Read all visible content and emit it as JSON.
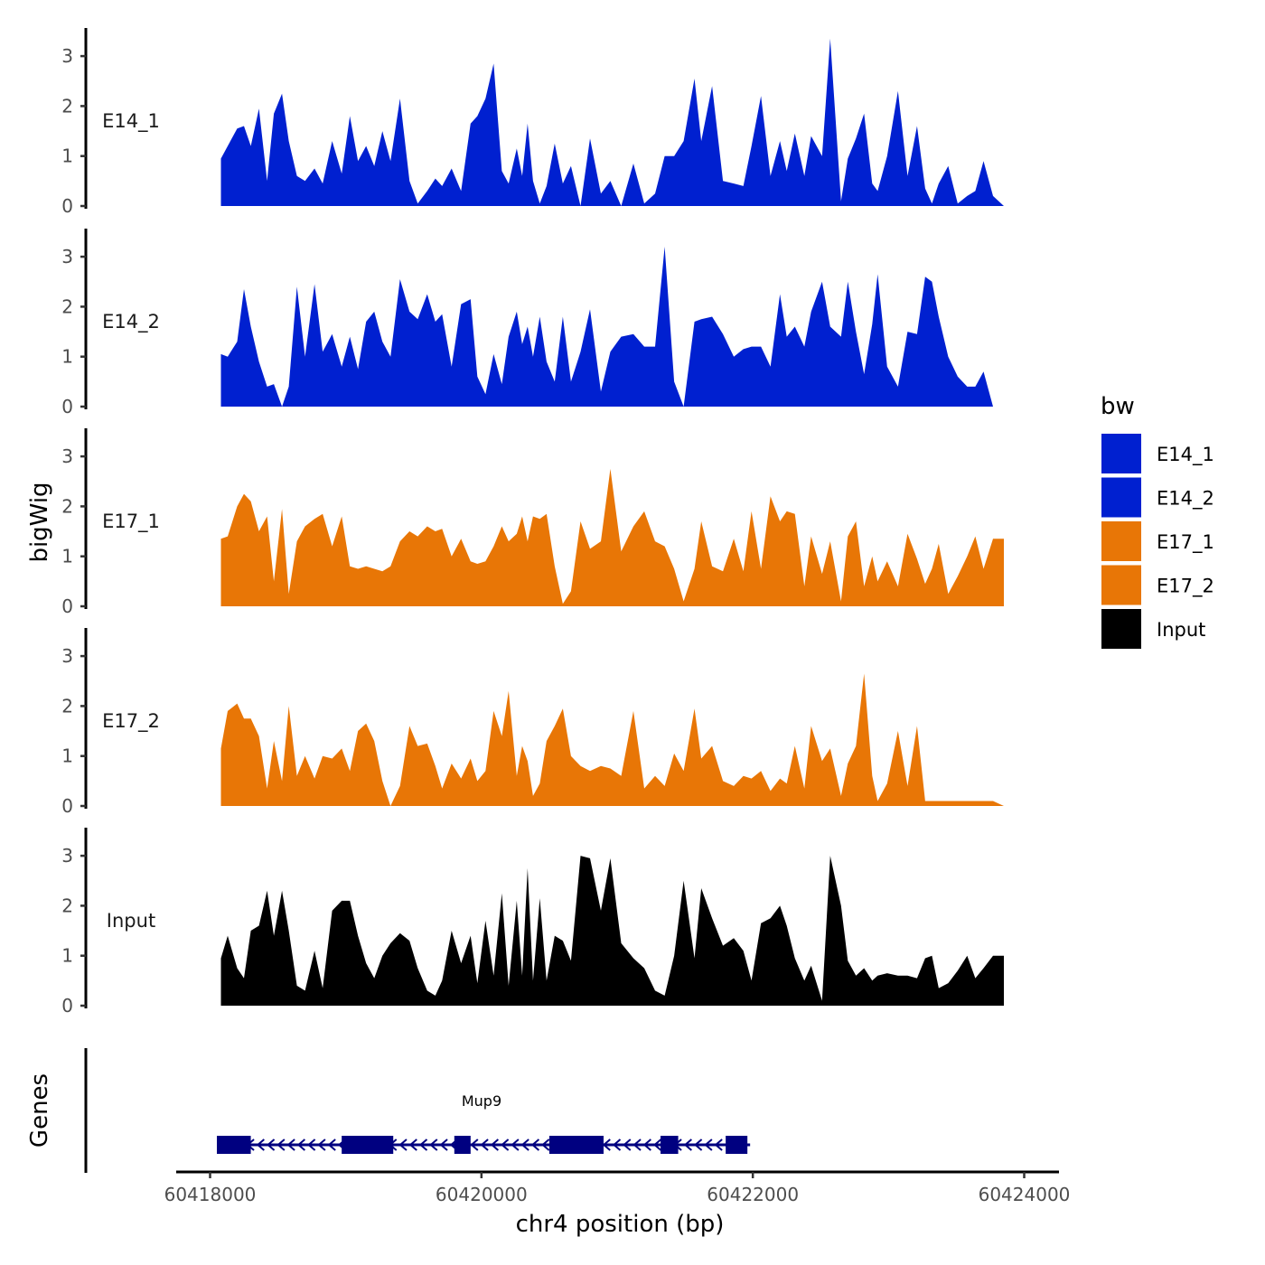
{
  "chart_data": {
    "type": "area",
    "ylabel": "bigWig",
    "xlabel": "chr4 position (bp)",
    "xlim": [
      60417880,
      60424120
    ],
    "x_ticks": [
      60418000,
      60420000,
      60422000,
      60424000
    ],
    "x_tick_labels": [
      "60418000",
      "60420000",
      "60422000",
      "60424000"
    ],
    "ylim": [
      0,
      3.5
    ],
    "y_ticks": [
      0,
      1,
      2,
      3
    ],
    "y_tick_labels": [
      "0",
      "1",
      "2",
      "3"
    ],
    "legend": {
      "title": "bw",
      "position": "right",
      "entries": [
        {
          "label": "E14_1",
          "color": "#0020D0"
        },
        {
          "label": "E14_2",
          "color": "#0020D0"
        },
        {
          "label": "E17_1",
          "color": "#E87606"
        },
        {
          "label": "E17_2",
          "color": "#E87606"
        },
        {
          "label": "Input",
          "color": "#000000"
        }
      ]
    },
    "series": [
      {
        "name": "E14_1",
        "color": "#0020D0",
        "x": [
          60418080,
          60418130,
          60418200,
          60418250,
          60418300,
          60418360,
          60418420,
          60418470,
          60418530,
          60418580,
          60418640,
          60418700,
          60418770,
          60418830,
          60418900,
          60418970,
          60419030,
          60419090,
          60419150,
          60419210,
          60419270,
          60419330,
          60419400,
          60419470,
          60419530,
          60419600,
          60419660,
          60419710,
          60419780,
          60419850,
          60419920,
          60419970,
          60420030,
          60420090,
          60420150,
          60420200,
          60420260,
          60420300,
          60420340,
          60420380,
          60420430,
          60420480,
          60420540,
          60420600,
          60420660,
          60420730,
          60420800,
          60420880,
          60420950,
          60421030,
          60421120,
          60421200,
          60421280,
          60421350,
          60421420,
          60421490,
          60421570,
          60421620,
          60421700,
          60421780,
          60421860,
          60421930,
          60421990,
          60422060,
          60422130,
          60422200,
          60422250,
          60422310,
          60422380,
          60422430,
          60422510,
          60422570,
          60422650,
          60422700,
          60422760,
          60422820,
          60422880,
          60422920,
          60422990,
          60423070,
          60423140,
          60423210,
          60423270,
          60423320,
          60423370,
          60423440,
          60423510,
          60423580,
          60423640,
          60423700,
          60423770,
          60423850
        ],
        "y": [
          0.95,
          1.2,
          1.55,
          1.6,
          1.2,
          1.95,
          0.5,
          1.85,
          2.25,
          1.3,
          0.6,
          0.5,
          0.75,
          0.45,
          1.3,
          0.65,
          1.8,
          0.9,
          1.2,
          0.8,
          1.5,
          0.9,
          2.15,
          0.5,
          0.05,
          0.3,
          0.55,
          0.4,
          0.75,
          0.3,
          1.65,
          1.8,
          2.15,
          2.85,
          0.7,
          0.45,
          1.15,
          0.6,
          1.65,
          0.5,
          0.05,
          0.4,
          1.25,
          0.45,
          0.8,
          0.0,
          1.35,
          0.25,
          0.5,
          0.0,
          0.85,
          0.05,
          0.25,
          1.0,
          1.0,
          1.3,
          2.55,
          1.3,
          2.4,
          0.5,
          0.45,
          0.4,
          1.2,
          2.2,
          0.6,
          1.3,
          0.7,
          1.45,
          0.6,
          1.4,
          1.0,
          3.35,
          0.1,
          0.95,
          1.35,
          1.85,
          0.45,
          0.3,
          1.0,
          2.3,
          0.6,
          1.6,
          0.35,
          0.05,
          0.45,
          0.8,
          0.05,
          0.2,
          0.3,
          0.9,
          0.2,
          0.0
        ]
      },
      {
        "name": "E14_2",
        "color": "#0020D0",
        "x": [
          60418080,
          60418130,
          60418200,
          60418250,
          60418300,
          60418360,
          60418420,
          60418470,
          60418530,
          60418580,
          60418640,
          60418700,
          60418770,
          60418830,
          60418900,
          60418970,
          60419030,
          60419090,
          60419150,
          60419210,
          60419270,
          60419330,
          60419400,
          60419470,
          60419530,
          60419600,
          60419660,
          60419710,
          60419780,
          60419850,
          60419920,
          60419970,
          60420030,
          60420090,
          60420150,
          60420200,
          60420260,
          60420300,
          60420340,
          60420380,
          60420430,
          60420480,
          60420540,
          60420600,
          60420660,
          60420730,
          60420800,
          60420880,
          60420950,
          60421030,
          60421120,
          60421200,
          60421280,
          60421350,
          60421420,
          60421490,
          60421570,
          60421620,
          60421700,
          60421780,
          60421860,
          60421930,
          60421990,
          60422060,
          60422130,
          60422200,
          60422250,
          60422310,
          60422380,
          60422430,
          60422510,
          60422570,
          60422650,
          60422700,
          60422760,
          60422820,
          60422880,
          60422920,
          60422990,
          60423070,
          60423140,
          60423210,
          60423270,
          60423320,
          60423370,
          60423440,
          60423510,
          60423580,
          60423640,
          60423700,
          60423770,
          60423850
        ],
        "y": [
          1.05,
          1.0,
          1.3,
          2.35,
          1.6,
          0.9,
          0.4,
          0.45,
          0.0,
          0.4,
          2.4,
          1.0,
          2.45,
          1.1,
          1.45,
          0.8,
          1.4,
          0.75,
          1.7,
          1.9,
          1.3,
          1.0,
          2.55,
          1.9,
          1.75,
          2.25,
          1.7,
          1.85,
          0.8,
          2.05,
          2.15,
          0.6,
          0.25,
          1.05,
          0.45,
          1.4,
          1.9,
          1.25,
          1.6,
          1.0,
          1.8,
          0.9,
          0.5,
          1.8,
          0.5,
          1.1,
          1.95,
          0.3,
          1.1,
          1.4,
          1.45,
          1.2,
          1.2,
          3.2,
          0.5,
          0.0,
          1.7,
          1.75,
          1.8,
          1.45,
          1.0,
          1.15,
          1.2,
          1.2,
          0.8,
          2.25,
          1.4,
          1.6,
          1.2,
          1.9,
          2.5,
          1.6,
          1.4,
          2.5,
          1.5,
          0.65,
          1.65,
          2.65,
          0.8,
          0.4,
          1.5,
          1.45,
          2.6,
          2.5,
          1.8,
          1.0,
          0.6,
          0.4,
          0.4,
          0.7,
          0.0,
          0.0
        ]
      },
      {
        "name": "E17_1",
        "color": "#E87606",
        "x": [
          60418080,
          60418130,
          60418200,
          60418250,
          60418300,
          60418360,
          60418420,
          60418470,
          60418530,
          60418580,
          60418640,
          60418700,
          60418770,
          60418830,
          60418900,
          60418970,
          60419030,
          60419090,
          60419150,
          60419210,
          60419270,
          60419330,
          60419400,
          60419470,
          60419530,
          60419600,
          60419660,
          60419710,
          60419780,
          60419850,
          60419920,
          60419970,
          60420030,
          60420090,
          60420150,
          60420200,
          60420260,
          60420300,
          60420340,
          60420380,
          60420430,
          60420480,
          60420540,
          60420600,
          60420660,
          60420730,
          60420800,
          60420880,
          60420950,
          60421030,
          60421120,
          60421200,
          60421280,
          60421350,
          60421420,
          60421490,
          60421570,
          60421620,
          60421700,
          60421780,
          60421860,
          60421930,
          60421990,
          60422060,
          60422130,
          60422200,
          60422250,
          60422310,
          60422380,
          60422430,
          60422510,
          60422570,
          60422650,
          60422700,
          60422760,
          60422820,
          60422880,
          60422920,
          60422990,
          60423070,
          60423140,
          60423210,
          60423270,
          60423320,
          60423370,
          60423440,
          60423510,
          60423580,
          60423640,
          60423700,
          60423770,
          60423850
        ],
        "y": [
          1.35,
          1.4,
          2.0,
          2.25,
          2.1,
          1.5,
          1.8,
          0.5,
          1.95,
          0.25,
          1.3,
          1.6,
          1.75,
          1.85,
          1.2,
          1.8,
          0.8,
          0.75,
          0.8,
          0.75,
          0.7,
          0.8,
          1.3,
          1.5,
          1.4,
          1.6,
          1.5,
          1.55,
          1.0,
          1.35,
          0.9,
          0.85,
          0.9,
          1.2,
          1.6,
          1.3,
          1.45,
          1.8,
          1.3,
          1.8,
          1.75,
          1.85,
          0.8,
          0.05,
          0.3,
          1.7,
          1.15,
          1.3,
          2.75,
          1.1,
          1.6,
          1.9,
          1.3,
          1.2,
          0.75,
          0.1,
          0.75,
          1.7,
          0.8,
          0.7,
          1.35,
          0.7,
          1.9,
          0.75,
          2.2,
          1.7,
          1.9,
          1.85,
          0.4,
          1.4,
          0.65,
          1.3,
          0.1,
          1.4,
          1.7,
          0.4,
          1.0,
          0.5,
          0.9,
          0.4,
          1.45,
          0.95,
          0.45,
          0.75,
          1.25,
          0.25,
          0.6,
          1.0,
          1.4,
          0.75,
          1.35,
          1.35
        ]
      },
      {
        "name": "E17_2",
        "color": "#E87606",
        "x": [
          60418080,
          60418130,
          60418200,
          60418250,
          60418300,
          60418360,
          60418420,
          60418470,
          60418530,
          60418580,
          60418640,
          60418700,
          60418770,
          60418830,
          60418900,
          60418970,
          60419030,
          60419090,
          60419150,
          60419210,
          60419270,
          60419330,
          60419400,
          60419470,
          60419530,
          60419600,
          60419660,
          60419710,
          60419780,
          60419850,
          60419920,
          60419970,
          60420030,
          60420090,
          60420150,
          60420200,
          60420260,
          60420300,
          60420340,
          60420380,
          60420430,
          60420480,
          60420540,
          60420600,
          60420660,
          60420730,
          60420800,
          60420880,
          60420950,
          60421030,
          60421120,
          60421200,
          60421280,
          60421350,
          60421420,
          60421490,
          60421570,
          60421620,
          60421700,
          60421780,
          60421860,
          60421930,
          60421990,
          60422060,
          60422130,
          60422200,
          60422250,
          60422310,
          60422380,
          60422430,
          60422510,
          60422570,
          60422650,
          60422700,
          60422760,
          60422820,
          60422880,
          60422920,
          60422990,
          60423070,
          60423140,
          60423210,
          60423270,
          60423320,
          60423370,
          60423440,
          60423510,
          60423580,
          60423640,
          60423700,
          60423770,
          60423850
        ],
        "y": [
          1.15,
          1.9,
          2.05,
          1.75,
          1.75,
          1.4,
          0.35,
          1.3,
          0.5,
          2.0,
          0.6,
          1.0,
          0.55,
          1.0,
          0.95,
          1.15,
          0.7,
          1.5,
          1.65,
          1.3,
          0.5,
          0.0,
          0.4,
          1.6,
          1.2,
          1.25,
          0.8,
          0.35,
          0.85,
          0.55,
          0.95,
          0.5,
          0.7,
          1.9,
          1.4,
          2.3,
          0.6,
          1.2,
          0.9,
          0.2,
          0.45,
          1.3,
          1.6,
          1.95,
          1.0,
          0.8,
          0.7,
          0.8,
          0.75,
          0.6,
          1.9,
          0.35,
          0.6,
          0.4,
          1.05,
          0.7,
          1.95,
          0.95,
          1.2,
          0.5,
          0.4,
          0.6,
          0.55,
          0.7,
          0.3,
          0.55,
          0.45,
          1.2,
          0.35,
          1.6,
          0.9,
          1.15,
          0.2,
          0.85,
          1.2,
          2.65,
          0.6,
          0.1,
          0.45,
          1.5,
          0.4,
          1.6,
          0.1,
          0.1,
          0.1,
          0.1,
          0.1,
          0.1,
          0.1,
          0.1,
          0.1,
          0.0
        ]
      },
      {
        "name": "Input",
        "color": "#000000",
        "x": [
          60418080,
          60418130,
          60418200,
          60418250,
          60418300,
          60418360,
          60418420,
          60418470,
          60418530,
          60418580,
          60418640,
          60418700,
          60418770,
          60418830,
          60418900,
          60418970,
          60419030,
          60419090,
          60419150,
          60419210,
          60419270,
          60419330,
          60419400,
          60419470,
          60419530,
          60419600,
          60419660,
          60419710,
          60419780,
          60419850,
          60419920,
          60419970,
          60420030,
          60420090,
          60420150,
          60420200,
          60420260,
          60420300,
          60420340,
          60420380,
          60420430,
          60420480,
          60420540,
          60420600,
          60420660,
          60420730,
          60420800,
          60420880,
          60420950,
          60421030,
          60421120,
          60421200,
          60421280,
          60421350,
          60421420,
          60421490,
          60421570,
          60421620,
          60421700,
          60421780,
          60421860,
          60421930,
          60421990,
          60422060,
          60422130,
          60422200,
          60422250,
          60422310,
          60422380,
          60422430,
          60422510,
          60422570,
          60422650,
          60422700,
          60422760,
          60422820,
          60422880,
          60422920,
          60422990,
          60423070,
          60423140,
          60423210,
          60423270,
          60423320,
          60423370,
          60423440,
          60423510,
          60423580,
          60423640,
          60423700,
          60423770,
          60423850
        ],
        "y": [
          0.95,
          1.4,
          0.75,
          0.55,
          1.5,
          1.6,
          2.3,
          1.4,
          2.3,
          1.5,
          0.4,
          0.3,
          1.1,
          0.35,
          1.9,
          2.1,
          2.1,
          1.4,
          0.85,
          0.55,
          1.0,
          1.25,
          1.45,
          1.3,
          0.75,
          0.3,
          0.2,
          0.5,
          1.5,
          0.85,
          1.4,
          0.45,
          1.7,
          0.6,
          2.25,
          0.4,
          2.1,
          0.6,
          2.75,
          0.5,
          2.15,
          0.5,
          1.4,
          1.3,
          0.9,
          3.0,
          2.95,
          1.9,
          2.95,
          1.25,
          0.95,
          0.75,
          0.3,
          0.2,
          1.0,
          2.5,
          0.95,
          2.35,
          1.75,
          1.2,
          1.35,
          1.1,
          0.5,
          1.65,
          1.75,
          2.0,
          1.6,
          0.95,
          0.5,
          0.8,
          0.1,
          3.0,
          2.0,
          0.9,
          0.6,
          0.75,
          0.5,
          0.6,
          0.65,
          0.6,
          0.6,
          0.55,
          0.95,
          1.0,
          0.35,
          0.45,
          0.7,
          1.0,
          0.55,
          0.75,
          1.0,
          1.0
        ]
      }
    ],
    "genes": {
      "label": "Genes",
      "gene_name": "Mup9",
      "color": "#000080",
      "strand": "-",
      "start": 60418050,
      "end": 60421980,
      "exons": [
        [
          60418050,
          60418300
        ],
        [
          60418970,
          60419350
        ],
        [
          60419800,
          60419920
        ],
        [
          60420500,
          60420900
        ],
        [
          60421320,
          60421450
        ],
        [
          60421800,
          60421960
        ]
      ]
    }
  }
}
